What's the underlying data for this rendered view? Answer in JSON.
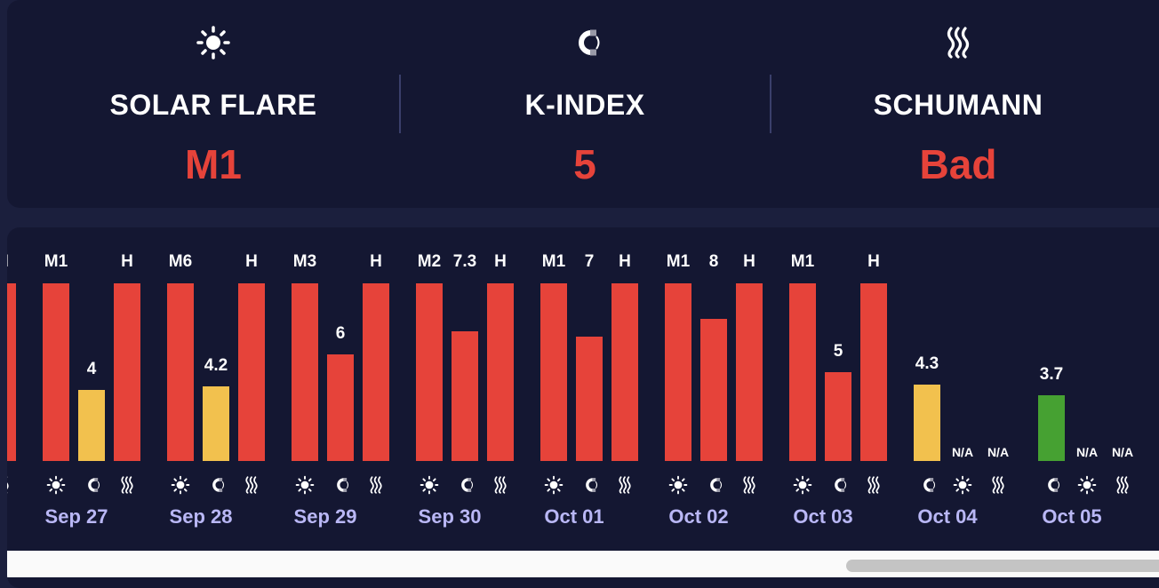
{
  "colors": {
    "red": "#e6433a",
    "yellow": "#f2c14e",
    "green": "#46a132",
    "date": "#b9b7f5",
    "background": "#141732"
  },
  "metrics": [
    {
      "label": "SOLAR FLARE",
      "value": "M1",
      "icon": "sun-icon"
    },
    {
      "label": "K-INDEX",
      "value": "5",
      "icon": "magnet-icon"
    },
    {
      "label": "SCHUMANN",
      "value": "Bad",
      "icon": "waves-icon"
    }
  ],
  "chart_data": {
    "type": "bar",
    "ylim": [
      0,
      9
    ],
    "categories": [
      "Sep 27",
      "Sep 28",
      "Sep 29",
      "Sep 30",
      "Oct 01",
      "Oct 02",
      "Oct 03",
      "Oct 04",
      "Oct 05"
    ],
    "partial_left_bar": {
      "label": "H",
      "icon": "waves-icon",
      "level": "high",
      "color": "#e6433a"
    },
    "days": [
      {
        "date": "Sep 27",
        "bars": [
          {
            "kind": "solar",
            "label": "M1",
            "icon": "sun-icon",
            "level": "high",
            "color": "#e6433a"
          },
          {
            "kind": "kindex",
            "label": "4",
            "value": 4,
            "icon": "magnet-icon",
            "color": "#f2c14e"
          },
          {
            "kind": "schumann",
            "label": "H",
            "icon": "waves-icon",
            "level": "high",
            "color": "#e6433a"
          }
        ]
      },
      {
        "date": "Sep 28",
        "bars": [
          {
            "kind": "solar",
            "label": "M6",
            "icon": "sun-icon",
            "level": "high",
            "color": "#e6433a"
          },
          {
            "kind": "kindex",
            "label": "4.2",
            "value": 4.2,
            "icon": "magnet-icon",
            "color": "#f2c14e"
          },
          {
            "kind": "schumann",
            "label": "H",
            "icon": "waves-icon",
            "level": "high",
            "color": "#e6433a"
          }
        ]
      },
      {
        "date": "Sep 29",
        "bars": [
          {
            "kind": "solar",
            "label": "M3",
            "icon": "sun-icon",
            "level": "high",
            "color": "#e6433a"
          },
          {
            "kind": "kindex",
            "label": "6",
            "value": 6,
            "icon": "magnet-icon",
            "color": "#e6433a"
          },
          {
            "kind": "schumann",
            "label": "H",
            "icon": "waves-icon",
            "level": "high",
            "color": "#e6433a"
          }
        ]
      },
      {
        "date": "Sep 30",
        "bars": [
          {
            "kind": "solar",
            "label": "M2",
            "icon": "sun-icon",
            "level": "high",
            "color": "#e6433a"
          },
          {
            "kind": "kindex",
            "label": "7.3",
            "value": 7.3,
            "icon": "magnet-icon",
            "color": "#e6433a"
          },
          {
            "kind": "schumann",
            "label": "H",
            "icon": "waves-icon",
            "level": "high",
            "color": "#e6433a"
          }
        ]
      },
      {
        "date": "Oct 01",
        "bars": [
          {
            "kind": "solar",
            "label": "M1",
            "icon": "sun-icon",
            "level": "high",
            "color": "#e6433a"
          },
          {
            "kind": "kindex",
            "label": "7",
            "value": 7,
            "icon": "magnet-icon",
            "color": "#e6433a"
          },
          {
            "kind": "schumann",
            "label": "H",
            "icon": "waves-icon",
            "level": "high",
            "color": "#e6433a"
          }
        ]
      },
      {
        "date": "Oct 02",
        "bars": [
          {
            "kind": "solar",
            "label": "M1",
            "icon": "sun-icon",
            "level": "high",
            "color": "#e6433a"
          },
          {
            "kind": "kindex",
            "label": "8",
            "value": 8,
            "icon": "magnet-icon",
            "color": "#e6433a"
          },
          {
            "kind": "schumann",
            "label": "H",
            "icon": "waves-icon",
            "level": "high",
            "color": "#e6433a"
          }
        ]
      },
      {
        "date": "Oct 03",
        "bars": [
          {
            "kind": "solar",
            "label": "M1",
            "icon": "sun-icon",
            "level": "high",
            "color": "#e6433a"
          },
          {
            "kind": "kindex",
            "label": "5",
            "value": 5,
            "icon": "magnet-icon",
            "color": "#e6433a"
          },
          {
            "kind": "schumann",
            "label": "H",
            "icon": "waves-icon",
            "level": "high",
            "color": "#e6433a"
          }
        ]
      },
      {
        "date": "Oct 04",
        "bars": [
          {
            "kind": "kindex",
            "label": "4.3",
            "value": 4.3,
            "icon": "magnet-icon",
            "color": "#f2c14e"
          },
          {
            "kind": "solar",
            "label": "N/A",
            "icon": "sun-icon",
            "level": "none"
          },
          {
            "kind": "schumann",
            "label": "N/A",
            "icon": "waves-icon",
            "level": "none"
          }
        ]
      },
      {
        "date": "Oct 05",
        "bars": [
          {
            "kind": "kindex",
            "label": "3.7",
            "value": 3.7,
            "icon": "magnet-icon",
            "color": "#46a132"
          },
          {
            "kind": "solar",
            "label": "N/A",
            "icon": "sun-icon",
            "level": "none"
          },
          {
            "kind": "schumann",
            "label": "N/A",
            "icon": "waves-icon",
            "level": "none"
          }
        ]
      }
    ]
  }
}
